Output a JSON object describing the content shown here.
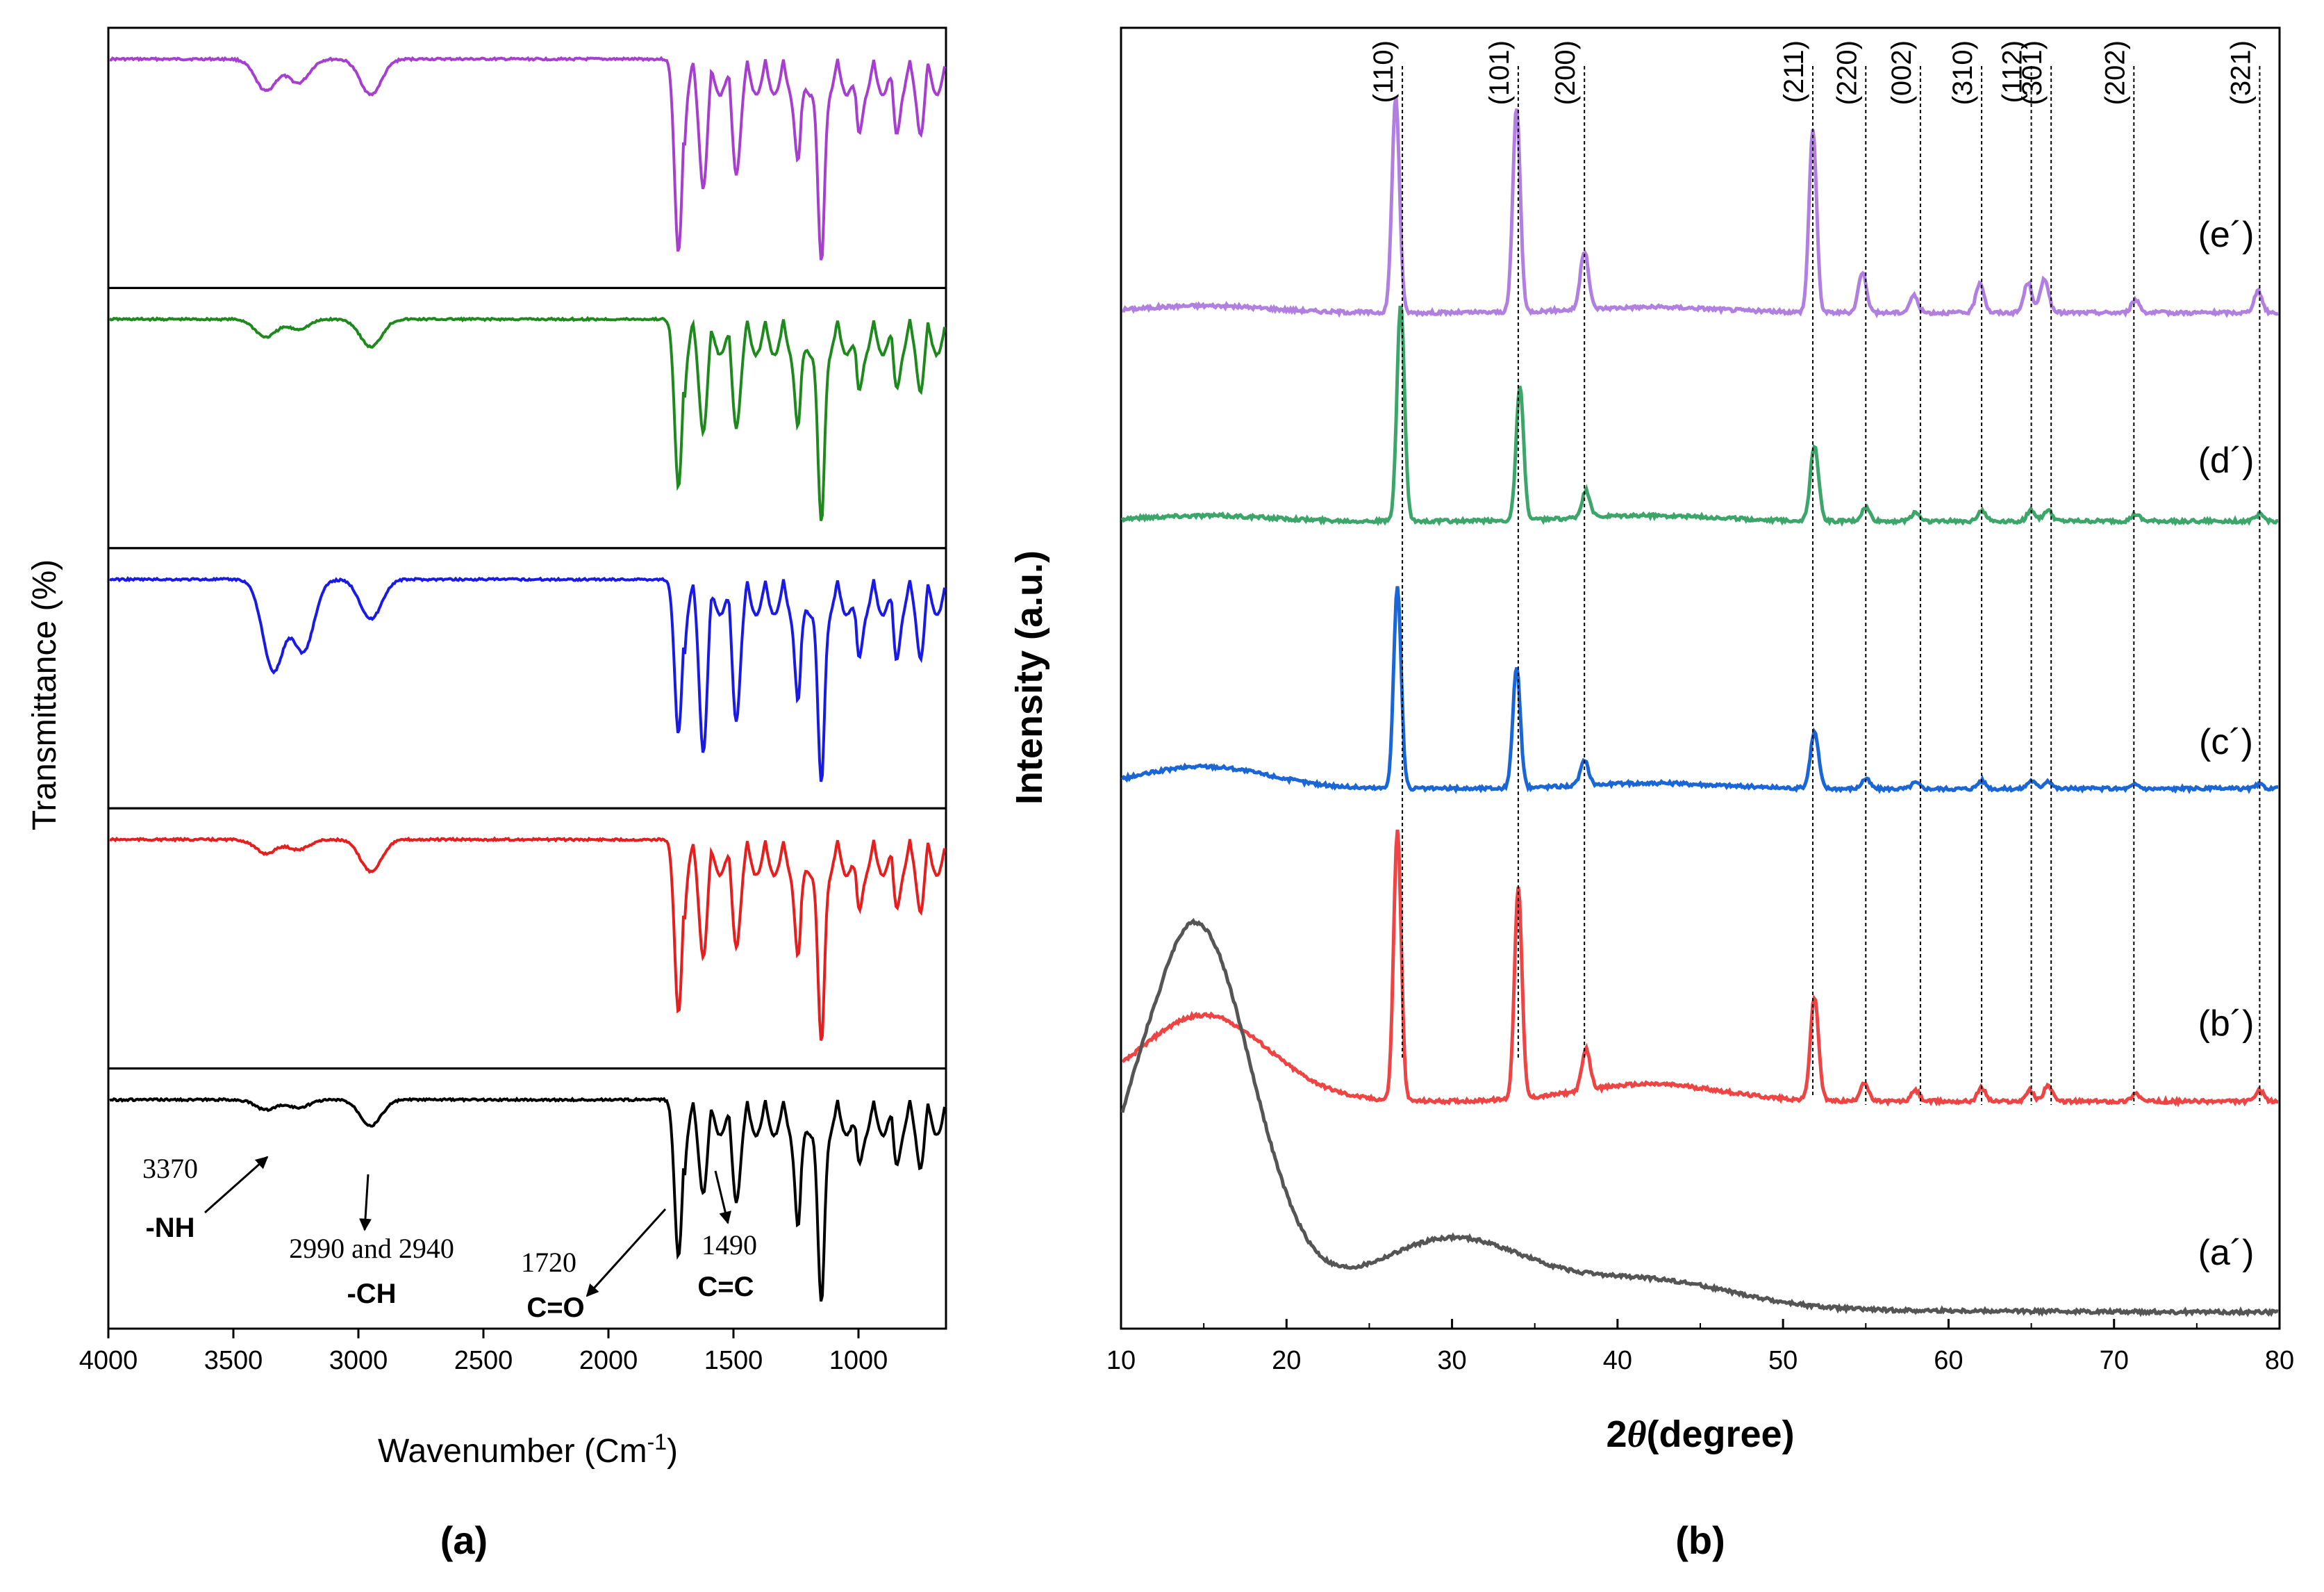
{
  "chart_data": [
    {
      "panel": "(a)",
      "type": "line",
      "title": "",
      "xlabel_main": "Wavenumber (Cm",
      "xlabel_sup": "-1",
      "xlabel_end": ")",
      "ylabel": "Transmittance (%)",
      "xlim": [
        4000,
        650
      ],
      "xticks": [
        "4000",
        "3500",
        "3000",
        "2500",
        "2000",
        "1500",
        "1000"
      ],
      "xtick_values": [
        4000,
        3500,
        3000,
        2500,
        2000,
        1500,
        1000
      ],
      "series": [
        {
          "name": "top",
          "color": "#a63fd0",
          "peaks": [
            {
              "x": 3370,
              "depth": 0.16
            },
            {
              "x": 3240,
              "depth": 0.12
            },
            {
              "x": 2950,
              "depth": 0.18
            },
            {
              "x": 1720,
              "depth": 0.98
            },
            {
              "x": 1620,
              "depth": 0.48
            },
            {
              "x": 1490,
              "depth": 0.42
            },
            {
              "x": 1240,
              "depth": 0.42
            },
            {
              "x": 1150,
              "depth": 1.0
            },
            {
              "x": 1000,
              "depth": 0.28
            },
            {
              "x": 850,
              "depth": 0.25
            },
            {
              "x": 750,
              "depth": 0.22
            }
          ]
        },
        {
          "name": "second",
          "color": "#1e8a1e",
          "peaks": [
            {
              "x": 3370,
              "depth": 0.09
            },
            {
              "x": 3240,
              "depth": 0.05
            },
            {
              "x": 2950,
              "depth": 0.14
            },
            {
              "x": 1720,
              "depth": 0.85
            },
            {
              "x": 1620,
              "depth": 0.4
            },
            {
              "x": 1490,
              "depth": 0.38
            },
            {
              "x": 1240,
              "depth": 0.45
            },
            {
              "x": 1150,
              "depth": 1.0
            },
            {
              "x": 1000,
              "depth": 0.26
            },
            {
              "x": 850,
              "depth": 0.22
            },
            {
              "x": 750,
              "depth": 0.2
            }
          ]
        },
        {
          "name": "third",
          "color": "#1a1ae6",
          "peaks": [
            {
              "x": 3340,
              "depth": 0.46
            },
            {
              "x": 3220,
              "depth": 0.36
            },
            {
              "x": 2950,
              "depth": 0.2
            },
            {
              "x": 1720,
              "depth": 0.78
            },
            {
              "x": 1620,
              "depth": 0.7
            },
            {
              "x": 1490,
              "depth": 0.55
            },
            {
              "x": 1240,
              "depth": 0.52
            },
            {
              "x": 1150,
              "depth": 1.0
            },
            {
              "x": 1000,
              "depth": 0.3
            },
            {
              "x": 850,
              "depth": 0.28
            },
            {
              "x": 750,
              "depth": 0.24
            }
          ]
        },
        {
          "name": "fourth",
          "color": "#e61e1e",
          "peaks": [
            {
              "x": 3370,
              "depth": 0.07
            },
            {
              "x": 3240,
              "depth": 0.05
            },
            {
              "x": 2950,
              "depth": 0.16
            },
            {
              "x": 1720,
              "depth": 0.88
            },
            {
              "x": 1620,
              "depth": 0.42
            },
            {
              "x": 1490,
              "depth": 0.38
            },
            {
              "x": 1240,
              "depth": 0.5
            },
            {
              "x": 1150,
              "depth": 1.0
            },
            {
              "x": 1000,
              "depth": 0.26
            },
            {
              "x": 850,
              "depth": 0.22
            },
            {
              "x": 750,
              "depth": 0.2
            }
          ]
        },
        {
          "name": "bottom",
          "color": "#000000",
          "peaks": [
            {
              "x": 3370,
              "depth": 0.05
            },
            {
              "x": 3240,
              "depth": 0.04
            },
            {
              "x": 2950,
              "depth": 0.13
            },
            {
              "x": 1720,
              "depth": 0.8
            },
            {
              "x": 1620,
              "depth": 0.3
            },
            {
              "x": 1490,
              "depth": 0.35
            },
            {
              "x": 1240,
              "depth": 0.55
            },
            {
              "x": 1150,
              "depth": 1.0
            },
            {
              "x": 1000,
              "depth": 0.22
            },
            {
              "x": 850,
              "depth": 0.2
            },
            {
              "x": 750,
              "depth": 0.18
            }
          ]
        }
      ],
      "annotations": [
        {
          "number": "3370",
          "group": "-NH",
          "x": 3370
        },
        {
          "number": "2990 and 2940",
          "group": "-CH",
          "x": 2960
        },
        {
          "number": "1720",
          "group": "C=O",
          "x": 1720
        },
        {
          "number": "1490",
          "group": "C=C",
          "x": 1490
        }
      ]
    },
    {
      "panel": "(b)",
      "type": "line",
      "title": "",
      "xlabel_main": "2",
      "xlabel_italic": "θ",
      "xlabel_end": "(degree)",
      "ylabel": "Intensity (a.u.)",
      "xlim": [
        10,
        80
      ],
      "xticks": [
        "10",
        "20",
        "30",
        "40",
        "50",
        "60",
        "70",
        "80"
      ],
      "xtick_values": [
        10,
        20,
        30,
        40,
        50,
        60,
        70,
        80
      ],
      "reflections": [
        {
          "hkl": "(110)",
          "two_theta": 27.0
        },
        {
          "hkl": "(101)",
          "two_theta": 34.0
        },
        {
          "hkl": "(200)",
          "two_theta": 38.0
        },
        {
          "hkl": "(211)",
          "two_theta": 51.8
        },
        {
          "hkl": "(220)",
          "two_theta": 55.0
        },
        {
          "hkl": "(002)",
          "two_theta": 58.3
        },
        {
          "hkl": "(310)",
          "two_theta": 62.0
        },
        {
          "hkl": "(112)",
          "two_theta": 65.0
        },
        {
          "hkl": "(301)",
          "two_theta": 66.2
        },
        {
          "hkl": "(202)",
          "two_theta": 71.2
        },
        {
          "hkl": "(321)",
          "two_theta": 78.8
        }
      ],
      "series": [
        {
          "name": "(e´)",
          "color": "#b07fe0",
          "hump": 0.05,
          "scale": 0.55,
          "peaks": [
            [
              26.6,
              1.0
            ],
            [
              33.9,
              0.95
            ],
            [
              38.0,
              0.27
            ],
            [
              51.8,
              0.85
            ],
            [
              54.8,
              0.19
            ],
            [
              57.9,
              0.08
            ],
            [
              61.9,
              0.14
            ],
            [
              64.8,
              0.14
            ],
            [
              65.8,
              0.16
            ],
            [
              71.3,
              0.06
            ],
            [
              78.7,
              0.1
            ]
          ]
        },
        {
          "name": "(d´)",
          "color": "#3ca66a",
          "hump": 0.04,
          "scale": 0.46,
          "peaks": [
            [
              26.9,
              0.98
            ],
            [
              34.1,
              0.6
            ],
            [
              38.1,
              0.12
            ],
            [
              51.9,
              0.34
            ],
            [
              55.0,
              0.06
            ],
            [
              58.0,
              0.04
            ],
            [
              62.0,
              0.05
            ],
            [
              65.0,
              0.05
            ],
            [
              66.0,
              0.05
            ],
            [
              71.3,
              0.03
            ],
            [
              78.8,
              0.03
            ]
          ]
        },
        {
          "name": "(c´)",
          "color": "#1a66d6",
          "hump": 0.16,
          "scale": 0.52,
          "peaks": [
            [
              26.7,
              1.0
            ],
            [
              33.9,
              0.6
            ],
            [
              38.0,
              0.12
            ],
            [
              51.9,
              0.28
            ],
            [
              55.0,
              0.05
            ],
            [
              58.0,
              0.03
            ],
            [
              62.0,
              0.04
            ],
            [
              65.0,
              0.04
            ],
            [
              66.0,
              0.04
            ],
            [
              71.3,
              0.02
            ],
            [
              78.8,
              0.02
            ]
          ]
        },
        {
          "name": "(b´)",
          "color": "#ee4444",
          "hump": 0.62,
          "scale": 0.9,
          "peaks": [
            [
              26.7,
              1.0
            ],
            [
              34.0,
              0.78
            ],
            [
              38.1,
              0.15
            ],
            [
              51.9,
              0.38
            ],
            [
              54.9,
              0.07
            ],
            [
              58.0,
              0.04
            ],
            [
              62.0,
              0.05
            ],
            [
              64.9,
              0.04
            ],
            [
              66.0,
              0.06
            ],
            [
              71.3,
              0.03
            ],
            [
              78.8,
              0.04
            ]
          ]
        },
        {
          "name": "(a´)",
          "color": "#555555",
          "hump": 1.0,
          "scale": 1.0,
          "peaks": []
        }
      ]
    }
  ]
}
